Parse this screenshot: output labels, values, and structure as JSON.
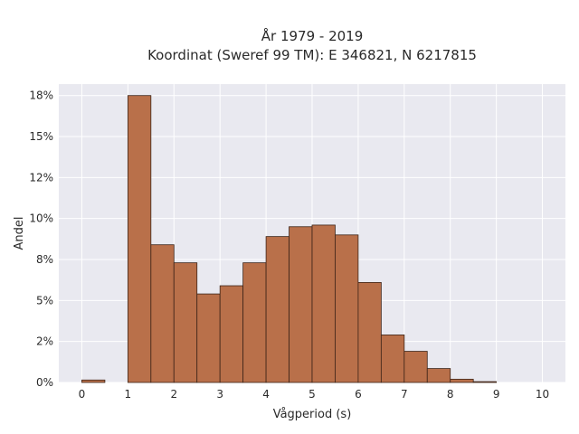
{
  "chart_data": {
    "type": "bar",
    "title_line1": "År 1979 - 2019",
    "title_line2": "Koordinat (Sweref 99 TM): E 346821, N 6217815",
    "xlabel": "Vågperiod (s)",
    "ylabel": "Andel",
    "x_ticks": [
      "0",
      "1",
      "2",
      "3",
      "4",
      "5",
      "6",
      "7",
      "8",
      "9",
      "10"
    ],
    "y_ticks": [
      "0%",
      "2%",
      "5%",
      "8%",
      "10%",
      "12%",
      "15%",
      "18%"
    ],
    "y_tick_values": [
      0,
      2.5,
      5,
      7.5,
      10,
      12.5,
      15,
      17.5
    ],
    "xlim": [
      -0.5,
      10.5
    ],
    "ylim": [
      0,
      18.2
    ],
    "bin_width": 0.5,
    "bins": [
      {
        "start": 0.0,
        "value": 0.15
      },
      {
        "start": 0.5,
        "value": 0.0
      },
      {
        "start": 1.0,
        "value": 17.5
      },
      {
        "start": 1.5,
        "value": 8.4
      },
      {
        "start": 2.0,
        "value": 7.3
      },
      {
        "start": 2.5,
        "value": 5.4
      },
      {
        "start": 3.0,
        "value": 5.9
      },
      {
        "start": 3.5,
        "value": 7.3
      },
      {
        "start": 4.0,
        "value": 8.9
      },
      {
        "start": 4.5,
        "value": 9.5
      },
      {
        "start": 5.0,
        "value": 9.6
      },
      {
        "start": 5.5,
        "value": 9.0
      },
      {
        "start": 6.0,
        "value": 6.1
      },
      {
        "start": 6.5,
        "value": 2.9
      },
      {
        "start": 7.0,
        "value": 1.9
      },
      {
        "start": 7.5,
        "value": 0.85
      },
      {
        "start": 8.0,
        "value": 0.2
      },
      {
        "start": 8.5,
        "value": 0.05
      },
      {
        "start": 9.0,
        "value": 0.0
      },
      {
        "start": 9.5,
        "value": 0.0
      }
    ],
    "grid": true,
    "colors": {
      "bar_fill": "#b9704a",
      "bar_stroke": "#3d2418",
      "plot_bg": "#e9e9f0",
      "grid": "#ffffff"
    }
  }
}
